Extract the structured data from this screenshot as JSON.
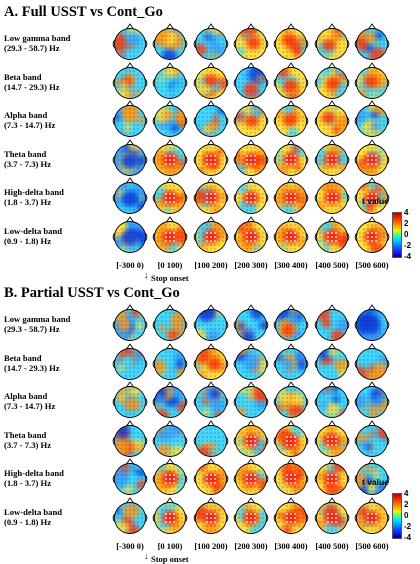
{
  "panels": [
    {
      "title": "A. Full USST vs Cont_Go",
      "bands": [
        {
          "name": "Low gamma band",
          "range": "(29.3 - 58.7) Hz",
          "maps": [
            "mixed",
            "mixed",
            "mixed",
            "red",
            "red",
            "red",
            "mixed"
          ]
        },
        {
          "name": "Beta band",
          "range": "(14.7 - 29.3) Hz",
          "maps": [
            "mixed",
            "mixed",
            "red",
            "mixed",
            "red",
            "red",
            "red"
          ]
        },
        {
          "name": "Alpha band",
          "range": "(7.3 - 14.7) Hz",
          "maps": [
            "mixed",
            "mixed",
            "mixed",
            "red",
            "red",
            "red",
            "mixed"
          ]
        },
        {
          "name": "Theta band",
          "range": "(3.7 - 7.3) Hz",
          "maps": [
            "blue",
            "red-center",
            "red-center",
            "red-center",
            "red-center",
            "red-center",
            "red-center"
          ]
        },
        {
          "name": "High-delta band",
          "range": "(1.8 - 3.7) Hz",
          "maps": [
            "blue",
            "red-center",
            "red-center",
            "red-center",
            "red-center",
            "red-center",
            "red-center"
          ]
        },
        {
          "name": "Low-delta band",
          "range": "(0.9 - 1.8) Hz",
          "maps": [
            "blue",
            "red-center",
            "red-center",
            "red-center",
            "red-center",
            "red-center",
            "red-center"
          ]
        }
      ],
      "time_windows": [
        "[-300 0)",
        "[0 100)",
        "[100 200)",
        "[200 300)",
        "[300 400)",
        "[400 500)",
        "[500 600)"
      ],
      "stop_label": "Stop onset",
      "colorbar": {
        "title": "t value",
        "ticks": [
          "4",
          "2",
          "0",
          "-2",
          "-4"
        ]
      }
    },
    {
      "title": "B. Partial USST vs Cont_Go",
      "bands": [
        {
          "name": "Low gamma band",
          "range": "(29.3 - 58.7) Hz",
          "maps": [
            "mixed",
            "mixed",
            "mixed",
            "mixed",
            "mixed",
            "mixed",
            "blue"
          ]
        },
        {
          "name": "Beta band",
          "range": "(14.7 - 29.3) Hz",
          "maps": [
            "mixed",
            "mixed",
            "red",
            "mixed",
            "mixed",
            "mixed",
            "mixed"
          ]
        },
        {
          "name": "Alpha band",
          "range": "(7.3 - 14.7) Hz",
          "maps": [
            "mixed",
            "mixed",
            "mixed",
            "mixed",
            "mixed",
            "mixed",
            "mixed"
          ]
        },
        {
          "name": "Theta band",
          "range": "(3.7 - 7.3) Hz",
          "maps": [
            "mixed",
            "mixed",
            "mixed",
            "red-center",
            "red-center",
            "red-center",
            "mixed"
          ]
        },
        {
          "name": "High-delta band",
          "range": "(1.8 - 3.7) Hz",
          "maps": [
            "mixed",
            "red-center",
            "red-center",
            "red-center",
            "red-center",
            "red-center",
            "mixed"
          ]
        },
        {
          "name": "Low-delta band",
          "range": "(0.9 - 1.8) Hz",
          "maps": [
            "mixed",
            "red-center",
            "red-center",
            "red-center",
            "red-center",
            "red-center",
            "red-center"
          ]
        }
      ],
      "time_windows": [
        "[-300 0)",
        "[0 100)",
        "[100 200)",
        "[200 300)",
        "[300 400)",
        "[400 500)",
        "[500 600)"
      ],
      "stop_label": "Stop onset",
      "colorbar": {
        "title": "t value",
        "ticks": [
          "4",
          "2",
          "0",
          "-2",
          "-4"
        ]
      }
    }
  ],
  "colors": {
    "strong_red": "#e0101a",
    "red": "#ff3a10",
    "orange": "#ff9a1a",
    "yellow": "#ffe040",
    "cyan": "#40d8ff",
    "light_blue": "#3aa0ff",
    "blue": "#1040e0",
    "dark_blue": "#001a9a"
  }
}
